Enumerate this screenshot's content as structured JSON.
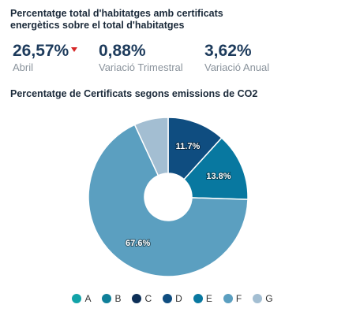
{
  "header": {
    "title": "Percentatge total d'habitatges amb certificats energètics sobre el total d'habitatges"
  },
  "kpis": [
    {
      "value": "26,57%",
      "label": "Abril",
      "trend": "down",
      "trend_color": "#d62626"
    },
    {
      "value": "0,88%",
      "label": "Variació Trimestral"
    },
    {
      "value": "3,62%",
      "label": "Variació Anual"
    }
  ],
  "chart_data": {
    "type": "pie",
    "title": "Percentatge de Certificats segons emissions de CO2",
    "hole": true,
    "slices": [
      {
        "label": "A",
        "value": 0.0,
        "color": "#12a3a8"
      },
      {
        "label": "B",
        "value": 0.0,
        "color": "#0f7f99"
      },
      {
        "label": "C",
        "value": 0.0,
        "color": "#0d2f57"
      },
      {
        "label": "D",
        "value": 11.7,
        "color": "#0f4d80",
        "data_label": "11.7%"
      },
      {
        "label": "E",
        "value": 13.8,
        "color": "#0878a0",
        "data_label": "13.8%"
      },
      {
        "label": "F",
        "value": 67.6,
        "color": "#5b9fc0",
        "data_label": "67.6%"
      },
      {
        "label": "G",
        "value": 6.9,
        "color": "#a3bed2"
      }
    ],
    "legend_position": "bottom"
  }
}
